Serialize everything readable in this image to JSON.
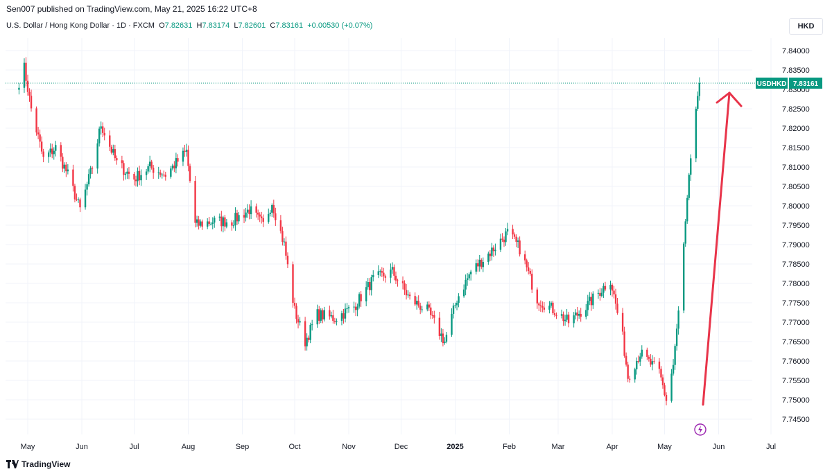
{
  "published": "Sen007 published on TradingView.com, May 21, 2025 16:22 UTC+8",
  "header": {
    "symbol": "U.S. Dollar / Hong Kong Dollar · 1D · FXCM",
    "o_label": "O",
    "open": "7.82631",
    "h_label": "H",
    "high": "7.83174",
    "l_label": "L",
    "low": "7.82601",
    "c_label": "C",
    "close": "7.83161",
    "change": "+0.00530 (+0.07%)"
  },
  "currency_button": "HKD",
  "brand": "TradingView",
  "colors": {
    "up": "#089981",
    "down": "#f23645",
    "arrow": "#e8344a",
    "grid": "#f0f3fa",
    "badge": "#089981",
    "bolt": "#9c27b0"
  },
  "chart_data": {
    "type": "candlestick",
    "title": "U.S. Dollar / Hong Kong Dollar · 1D · FXCM",
    "ylabel": "HKD",
    "ylim": [
      7.743,
      7.843
    ],
    "y_ticks": [
      "7.84000",
      "7.83500",
      "7.83000",
      "7.82500",
      "7.82000",
      "7.81500",
      "7.81000",
      "7.80500",
      "7.80000",
      "7.79500",
      "7.79000",
      "7.78500",
      "7.78000",
      "7.77500",
      "7.77000",
      "7.76500",
      "7.76000",
      "7.75500",
      "7.75000",
      "7.74500"
    ],
    "x_ticks": [
      "May",
      "Jun",
      "Jul",
      "Aug",
      "Sep",
      "Oct",
      "Nov",
      "Dec",
      "2025",
      "Feb",
      "Mar",
      "Apr",
      "May",
      "Jun",
      "Jul"
    ],
    "bold_x_ticks": [
      "2025"
    ],
    "last_price": {
      "symbol": "USDHKD",
      "value": "7.83161"
    },
    "annotation": "red arrow pointing up from ~7.749 (mid-May 2025) toward ~7.830",
    "close_path": [
      {
        "date": "2024-04-26",
        "close": 7.832
      },
      {
        "date": "2024-04-29",
        "close": 7.8355
      },
      {
        "date": "2024-05-03",
        "close": 7.825
      },
      {
        "date": "2024-05-10",
        "close": 7.812
      },
      {
        "date": "2024-05-17",
        "close": 7.815
      },
      {
        "date": "2024-05-24",
        "close": 7.808
      },
      {
        "date": "2024-05-31",
        "close": 7.799
      },
      {
        "date": "2024-06-07",
        "close": 7.81
      },
      {
        "date": "2024-06-12",
        "close": 7.821
      },
      {
        "date": "2024-06-21",
        "close": 7.811
      },
      {
        "date": "2024-07-01",
        "close": 7.807
      },
      {
        "date": "2024-07-10",
        "close": 7.81
      },
      {
        "date": "2024-07-19",
        "close": 7.808
      },
      {
        "date": "2024-07-31",
        "close": 7.814
      },
      {
        "date": "2024-08-05",
        "close": 7.795
      },
      {
        "date": "2024-08-15",
        "close": 7.796
      },
      {
        "date": "2024-08-26",
        "close": 7.796
      },
      {
        "date": "2024-09-05",
        "close": 7.799
      },
      {
        "date": "2024-09-13",
        "close": 7.795
      },
      {
        "date": "2024-09-18",
        "close": 7.801
      },
      {
        "date": "2024-09-25",
        "close": 7.79
      },
      {
        "date": "2024-10-01",
        "close": 7.773
      },
      {
        "date": "2024-10-07",
        "close": 7.765
      },
      {
        "date": "2024-10-14",
        "close": 7.772
      },
      {
        "date": "2024-10-24",
        "close": 7.771
      },
      {
        "date": "2024-11-04",
        "close": 7.774
      },
      {
        "date": "2024-11-15",
        "close": 7.781
      },
      {
        "date": "2024-11-26",
        "close": 7.783
      },
      {
        "date": "2024-12-06",
        "close": 7.776
      },
      {
        "date": "2024-12-16",
        "close": 7.773
      },
      {
        "date": "2024-12-26",
        "close": 7.765
      },
      {
        "date": "2025-01-02",
        "close": 7.776
      },
      {
        "date": "2025-01-10",
        "close": 7.783
      },
      {
        "date": "2025-01-21",
        "close": 7.788
      },
      {
        "date": "2025-01-31",
        "close": 7.793
      },
      {
        "date": "2025-02-07",
        "close": 7.789
      },
      {
        "date": "2025-02-17",
        "close": 7.776
      },
      {
        "date": "2025-02-27",
        "close": 7.773
      },
      {
        "date": "2025-03-07",
        "close": 7.77
      },
      {
        "date": "2025-03-17",
        "close": 7.774
      },
      {
        "date": "2025-03-31",
        "close": 7.781
      },
      {
        "date": "2025-04-07",
        "close": 7.766
      },
      {
        "date": "2025-04-10",
        "close": 7.756
      },
      {
        "date": "2025-04-17",
        "close": 7.762
      },
      {
        "date": "2025-04-28",
        "close": 7.757
      },
      {
        "date": "2025-05-02",
        "close": 7.75
      },
      {
        "date": "2025-05-06",
        "close": 7.759
      },
      {
        "date": "2025-05-09",
        "close": 7.773
      },
      {
        "date": "2025-05-13",
        "close": 7.796
      },
      {
        "date": "2025-05-15",
        "close": 7.808
      },
      {
        "date": "2025-05-19",
        "close": 7.825
      },
      {
        "date": "2025-05-21",
        "close": 7.8316
      }
    ]
  }
}
